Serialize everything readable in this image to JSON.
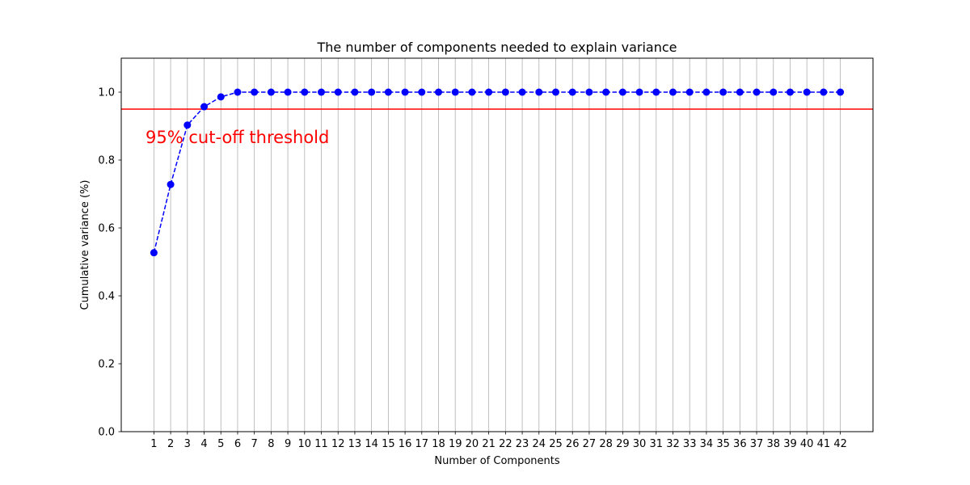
{
  "chart_data": {
    "type": "line",
    "title": "The number of components needed to explain variance",
    "xlabel": "Number of Components",
    "ylabel": "Cumulative variance (%)",
    "x": [
      1,
      2,
      3,
      4,
      5,
      6,
      7,
      8,
      9,
      10,
      11,
      12,
      13,
      14,
      15,
      16,
      17,
      18,
      19,
      20,
      21,
      22,
      23,
      24,
      25,
      26,
      27,
      28,
      29,
      30,
      31,
      32,
      33,
      34,
      35,
      36,
      37,
      38,
      39,
      40,
      41,
      42
    ],
    "xlim": [
      -0.95,
      43.95
    ],
    "ylim": [
      0.0,
      1.1
    ],
    "yticks": [
      0.0,
      0.2,
      0.4,
      0.6,
      0.8,
      1.0
    ],
    "grid": "x-only",
    "series": [
      {
        "values": [
          0.527,
          0.728,
          0.903,
          0.957,
          0.986,
          1.0,
          1.0,
          1.0,
          1.0,
          1.0,
          1.0,
          1.0,
          1.0,
          1.0,
          1.0,
          1.0,
          1.0,
          1.0,
          1.0,
          1.0,
          1.0,
          1.0,
          1.0,
          1.0,
          1.0,
          1.0,
          1.0,
          1.0,
          1.0,
          1.0,
          1.0,
          1.0,
          1.0,
          1.0,
          1.0,
          1.0,
          1.0,
          1.0,
          1.0,
          1.0,
          1.0,
          1.0
        ],
        "color": "#0000ff",
        "linestyle": "dashed",
        "marker": "circle"
      }
    ],
    "threshold": {
      "value": 0.95,
      "color": "#ff0000"
    },
    "annotation": {
      "text": "95% cut-off threshold",
      "x": 0.5,
      "y": 0.85,
      "color": "#ff0000"
    }
  }
}
